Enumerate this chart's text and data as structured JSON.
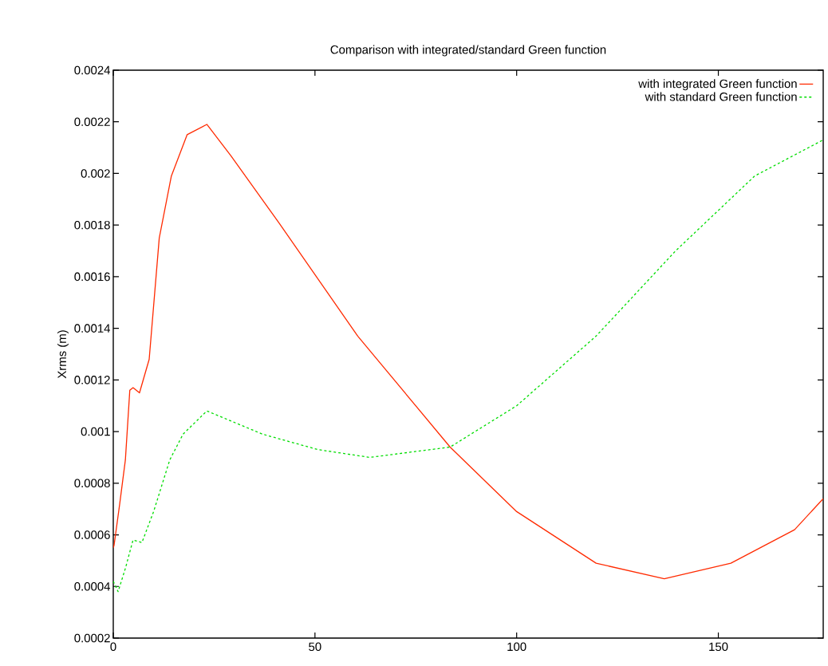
{
  "chart_data": {
    "type": "line",
    "title": "Comparison with integrated/standard Green function",
    "ylabel": "Xrms (m)",
    "xlim": [
      0,
      176
    ],
    "xticks": [
      0,
      50,
      100,
      150
    ],
    "ylim": [
      0.0002,
      0.0024
    ],
    "yticks": [
      0.0002,
      0.0004,
      0.0006,
      0.0008,
      0.001,
      0.0012,
      0.0014,
      0.0016,
      0.0018,
      0.002,
      0.0022,
      0.0024
    ],
    "legend": "top right",
    "series": [
      {
        "name": "with integrated Green function",
        "color": "#ff2a00",
        "line_style": "solid",
        "x": [
          0,
          0.2,
          1.6,
          3,
          4.1,
          4.9,
          6.5,
          8.9,
          11.4,
          14.4,
          18.3,
          23.2,
          29.1,
          41,
          60.6,
          83.5,
          100,
          119.7,
          136.6,
          153.1,
          168.9,
          176
        ],
        "values": [
          0.00055,
          0.00056,
          0.00072,
          0.00089,
          0.00116,
          0.00117,
          0.00115,
          0.00128,
          0.00175,
          0.00199,
          0.00215,
          0.00219,
          0.00207,
          0.00181,
          0.00137,
          0.00094,
          0.00069,
          0.00049,
          0.00043,
          0.00049,
          0.00062,
          0.00074
        ]
      },
      {
        "name": "with standard Green function",
        "color": "#00dd00",
        "line_style": "dashed",
        "x": [
          0,
          1.2,
          3,
          4.9,
          7.1,
          10,
          14,
          17.3,
          23.2,
          37,
          50.8,
          63.6,
          83.5,
          100,
          119.7,
          139.4,
          159,
          176
        ],
        "values": [
          0.00042,
          0.00038,
          0.00047,
          0.00058,
          0.00057,
          0.00069,
          0.00089,
          0.00099,
          0.00108,
          0.00099,
          0.00093,
          0.0009,
          0.00094,
          0.0011,
          0.00137,
          0.0017,
          0.00199,
          0.00213
        ]
      }
    ]
  }
}
